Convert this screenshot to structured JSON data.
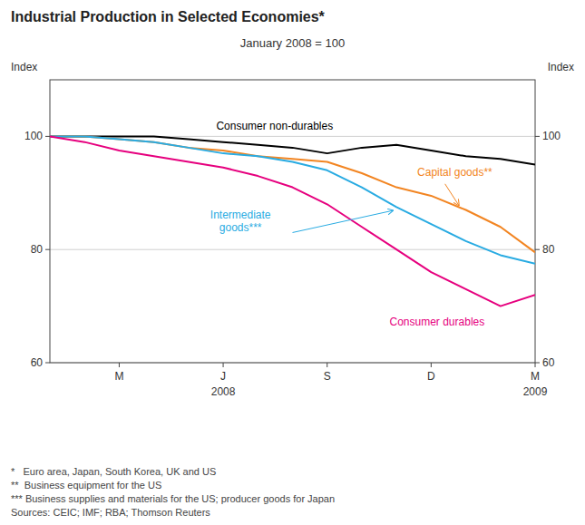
{
  "chart_data": {
    "type": "line",
    "title": "Industrial Production in Selected Economies*",
    "subtitle": "January 2008 = 100",
    "ylabel": "Index",
    "y2label": "Index",
    "categories": [
      null,
      null,
      "M",
      null,
      null,
      "J",
      null,
      null,
      "S",
      null,
      null,
      "D",
      null,
      null,
      "M"
    ],
    "ylim": [
      60,
      110
    ],
    "yticks": [
      60,
      80,
      100
    ],
    "y2lim": [
      60,
      110
    ],
    "y2ticks": [
      60,
      80,
      100
    ],
    "grid": true,
    "series": [
      {
        "name": "Consumer non-durables",
        "color": "#000000",
        "values": [
          100,
          100,
          100,
          100,
          99.5,
          99,
          98.5,
          98,
          97,
          98,
          98.5,
          97.5,
          96.5,
          96,
          95
        ]
      },
      {
        "name": "Capital goods**",
        "color": "#f28522",
        "values": [
          100,
          100,
          99.5,
          99,
          98,
          97.5,
          96.5,
          96,
          95.5,
          93.5,
          91,
          89.5,
          87,
          84,
          79.5
        ]
      },
      {
        "name": "Intermediate\ngoods***",
        "color": "#29abe2",
        "values": [
          100,
          100,
          99.5,
          99,
          98,
          97,
          96.5,
          95.5,
          94,
          91,
          87.5,
          84.5,
          81.5,
          79,
          77.5
        ]
      },
      {
        "name": "Consumer durables",
        "color": "#e6007e",
        "values": [
          100,
          99,
          97.5,
          96.5,
          95.5,
          94.5,
          93,
          91,
          88,
          84,
          80,
          76,
          73,
          70,
          72
        ]
      }
    ],
    "annotations": [
      {
        "text": "2008",
        "x": 5
      },
      {
        "text": "2009",
        "x": 14
      }
    ],
    "footnotes": [
      "*   Euro area, Japan, South Korea, UK and US",
      "**  Business equipment for the US",
      "*** Business supplies and materials for the US; producer goods for Japan",
      "Sources: CEIC; IMF; RBA; Thomson Reuters"
    ]
  }
}
